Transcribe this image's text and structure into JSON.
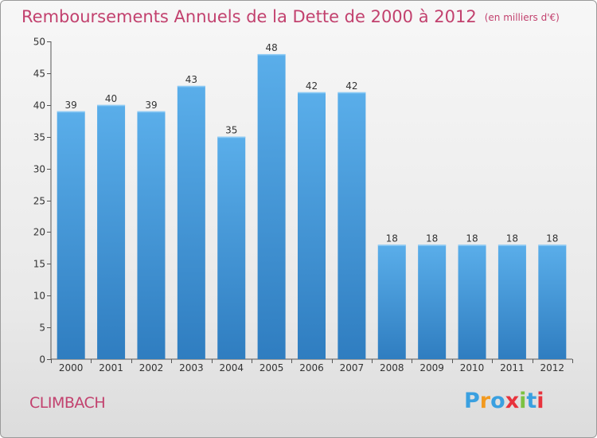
{
  "title": "Remboursements Annuels de la Dette de 2000 à 2012",
  "subtitle": "(en milliers d'€)",
  "city": "CLIMBACH",
  "logo": {
    "letters": [
      "P",
      "r",
      "o",
      "x",
      "i",
      "t",
      "i"
    ],
    "colors": [
      "#3aa0e0",
      "#f29a1f",
      "#3aa0e0",
      "#e8333d",
      "#7cc242",
      "#3aa0e0",
      "#e8333d"
    ]
  },
  "colors": {
    "title": "#c2416e",
    "bar_top": "#5aaeea",
    "bar_bottom": "#2f7dc0"
  },
  "chart_data": {
    "type": "bar",
    "title": "Remboursements Annuels de la Dette de 2000 à 2012",
    "subtitle": "(en milliers d'€)",
    "categories": [
      "2000",
      "2001",
      "2002",
      "2003",
      "2004",
      "2005",
      "2006",
      "2007",
      "2008",
      "2009",
      "2010",
      "2011",
      "2012"
    ],
    "values": [
      39,
      40,
      39,
      43,
      35,
      48,
      42,
      42,
      18,
      18,
      18,
      18,
      18
    ],
    "ylim": [
      0,
      50
    ],
    "yticks": [
      0,
      5,
      10,
      15,
      20,
      25,
      30,
      35,
      40,
      45,
      50
    ],
    "xlabel": "",
    "ylabel": "",
    "grid": false,
    "legend": "none"
  }
}
